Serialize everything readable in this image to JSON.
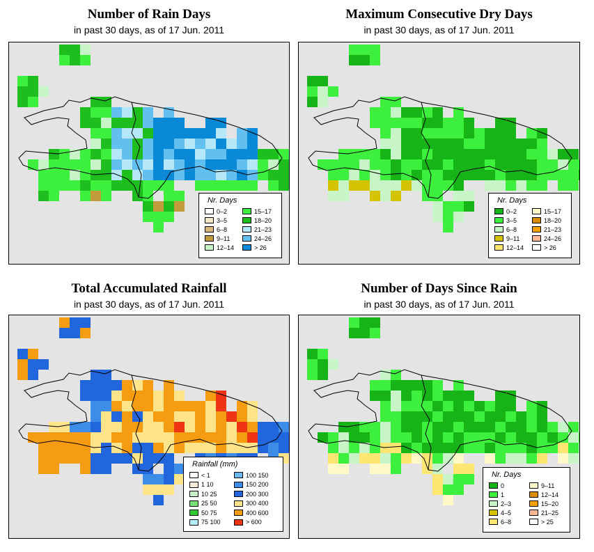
{
  "panels": [
    {
      "title": "Number of Rain Days",
      "subtitle": "in past 30 days, as of  17 Jun. 2011",
      "legend_title": "Nr. Days",
      "legend": [
        {
          "label": "0–2",
          "color": "#ffffff"
        },
        {
          "label": "3–5",
          "color": "#f3e8c8"
        },
        {
          "label": "6–8",
          "color": "#d9b878"
        },
        {
          "label": "9–11",
          "color": "#c29b3a"
        },
        {
          "label": "12–14",
          "color": "#c8f5c8"
        },
        {
          "label": "15–17",
          "color": "#3ef03e"
        },
        {
          "label": "18–20",
          "color": "#1ebe1e"
        },
        {
          "label": "21–23",
          "color": "#b4e8f8"
        },
        {
          "label": "24–26",
          "color": "#62c0f0"
        },
        {
          "label": "> 26",
          "color": "#0a8ad6"
        }
      ]
    },
    {
      "title": "Maximum Consecutive Dry Days",
      "subtitle": "in past 30 days, as of  17 Jun. 2011",
      "legend_title": "Nr. Days",
      "legend": [
        {
          "label": "0–2",
          "color": "#17b417"
        },
        {
          "label": "3–5",
          "color": "#3ef03e"
        },
        {
          "label": "6–8",
          "color": "#c8f5c8"
        },
        {
          "label": "9–11",
          "color": "#d4c400"
        },
        {
          "label": "12–14",
          "color": "#ffe672"
        },
        {
          "label": "15–17",
          "color": "#fff8c8"
        },
        {
          "label": "18–20",
          "color": "#d98c00"
        },
        {
          "label": "21–23",
          "color": "#f5a000"
        },
        {
          "label": "24–26",
          "color": "#ffb898"
        },
        {
          "label": "> 26",
          "color": "#ffffff"
        }
      ]
    },
    {
      "title": "Total Accumulated Rainfall",
      "subtitle": "in past 30 days, as of  17 Jun. 2011",
      "legend_title": "Rainfall (mm)",
      "legend": [
        {
          "label": "< 1",
          "color": "#ffffff"
        },
        {
          "label": "1   10",
          "color": "#f7ecd8"
        },
        {
          "label": "10   25",
          "color": "#c8f0c8"
        },
        {
          "label": "25   50",
          "color": "#78e078"
        },
        {
          "label": "50   75",
          "color": "#32c832"
        },
        {
          "label": "75   100",
          "color": "#b4ecfa"
        },
        {
          "label": "100   150",
          "color": "#6ab8f0"
        },
        {
          "label": "150   200",
          "color": "#3c8ce8"
        },
        {
          "label": "200   300",
          "color": "#2266dd"
        },
        {
          "label": "300   400",
          "color": "#ffe48a"
        },
        {
          "label": "400   600",
          "color": "#f59c10"
        },
        {
          "label": "> 600",
          "color": "#ee3412"
        }
      ]
    },
    {
      "title": "Number of Days Since Rain",
      "subtitle": "in past 30 days, as of  17 Jun. 2011",
      "legend_title": "Nr. Days",
      "legend": [
        {
          "label": "0",
          "color": "#17b417"
        },
        {
          "label": "1",
          "color": "#3ef03e"
        },
        {
          "label": "2–3",
          "color": "#c8f5c8"
        },
        {
          "label": "4–5",
          "color": "#d4c400"
        },
        {
          "label": "6–8",
          "color": "#ffe672"
        },
        {
          "label": "9–11",
          "color": "#fff8c8"
        },
        {
          "label": "12–14",
          "color": "#d98c00"
        },
        {
          "label": "15–20",
          "color": "#f5a000"
        },
        {
          "label": "21–25",
          "color": "#ffb898"
        },
        {
          "label": "> 25",
          "color": "#ffffff"
        }
      ]
    }
  ]
}
